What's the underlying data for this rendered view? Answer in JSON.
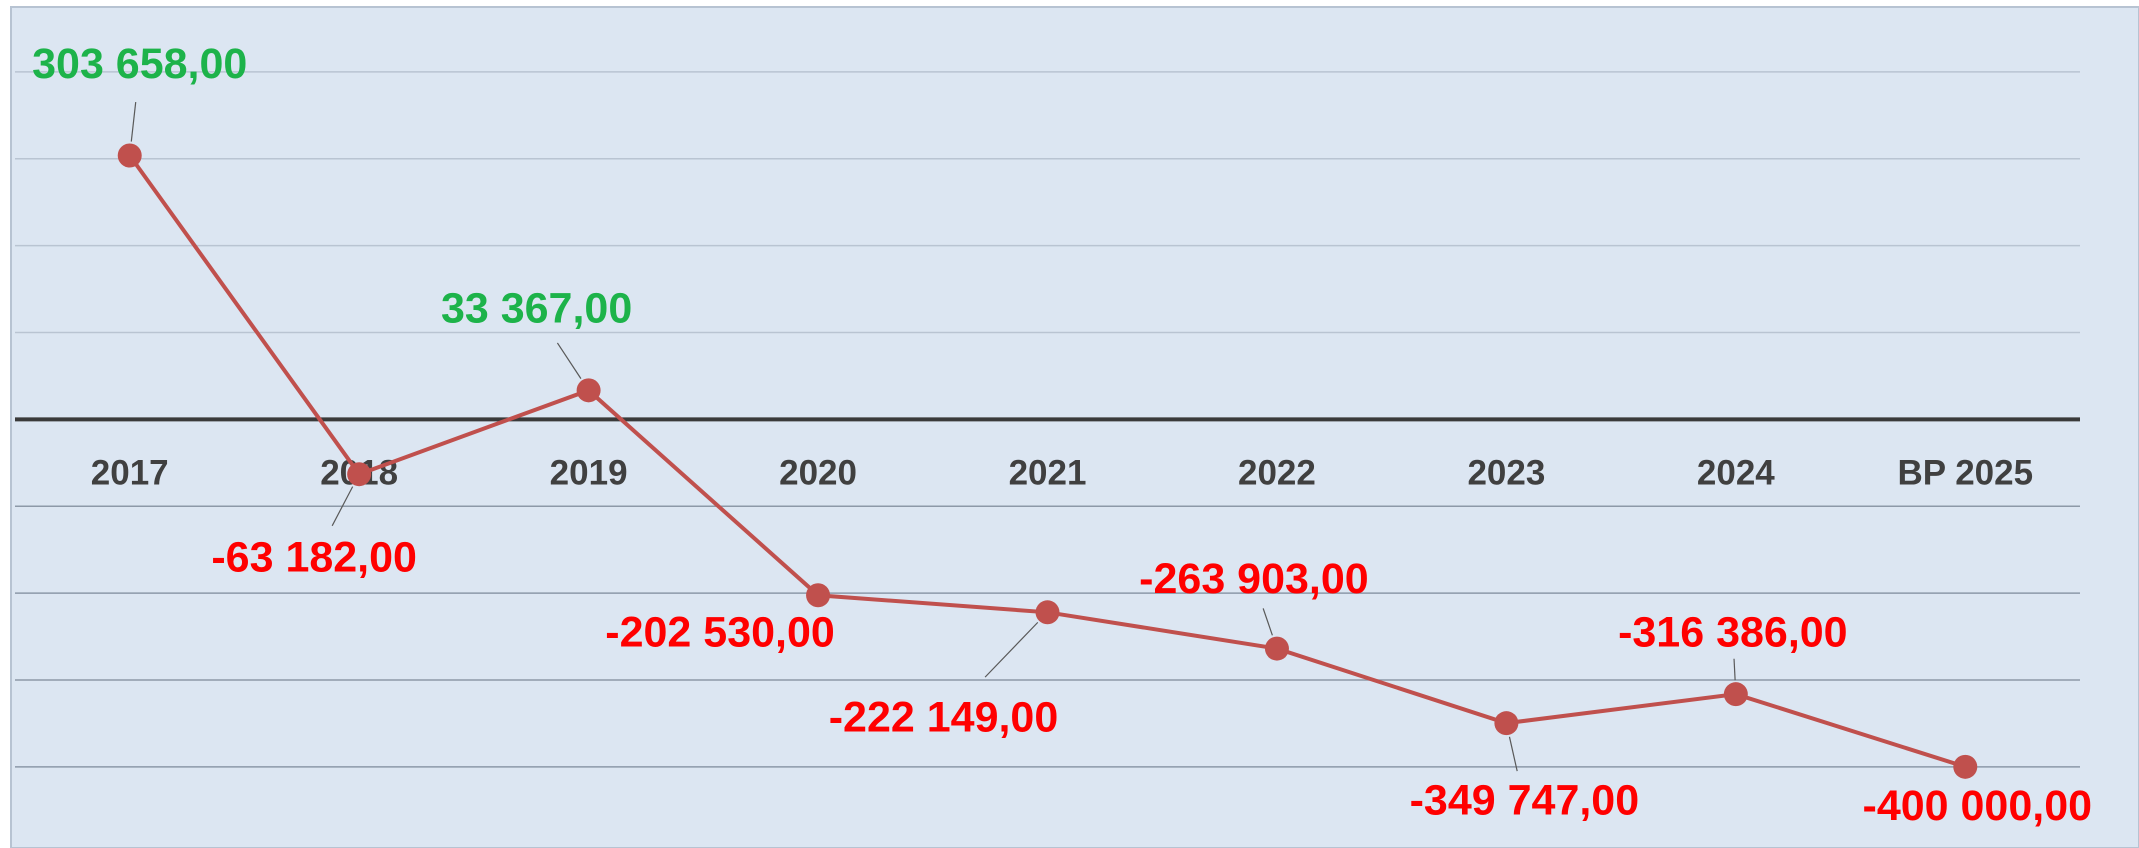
{
  "chart_data": {
    "type": "line",
    "categories": [
      "2017",
      "2018",
      "2019",
      "2020",
      "2021",
      "2022",
      "2023",
      "2024",
      "BP 2025"
    ],
    "series": [
      {
        "color": "#c0504d",
        "values": [
          303658,
          -63182,
          33367,
          -202530,
          -222149,
          -263903,
          -349747,
          -316386,
          -400000
        ],
        "value_labels": [
          "303 658,00",
          "-63 182,00",
          "33 367,00",
          "-202 530,00",
          "-222 149,00",
          "-263 903,00",
          "-349 747,00",
          "-316 386,00",
          "-400 000,00"
        ]
      }
    ],
    "positive_label_color": "#1db34a",
    "negative_label_color": "#ff0000",
    "ylim": [
      -490000,
      470000
    ],
    "yticks": [
      -400000,
      -300000,
      -200000,
      -100000,
      0,
      100000,
      200000,
      300000,
      400000
    ],
    "grid": true
  }
}
